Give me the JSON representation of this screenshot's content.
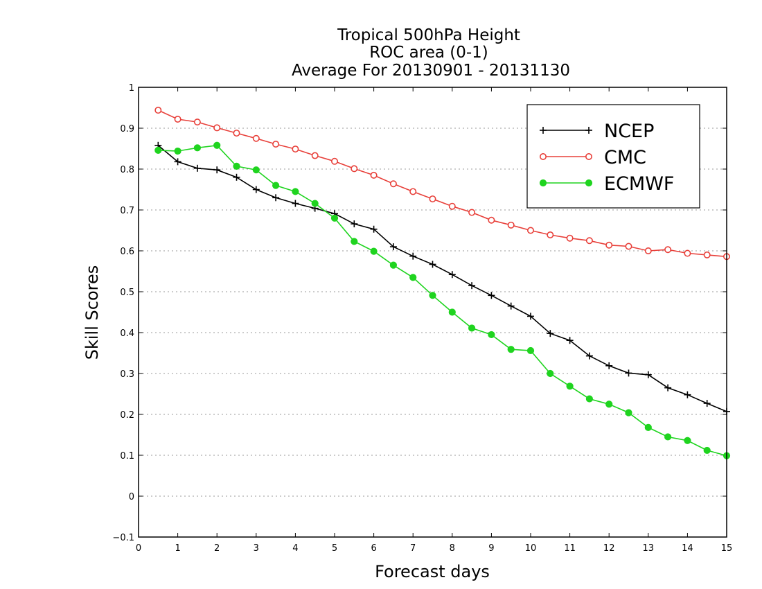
{
  "chart_data": {
    "type": "line",
    "title": [
      "Tropical 500hPa Height",
      "ROC area (0-1)",
      "Average For 20130901 - 20131130"
    ],
    "xlabel": "Forecast days",
    "ylabel": "Skill Scores",
    "xlim": [
      0,
      15
    ],
    "ylim": [
      -0.1,
      1
    ],
    "xticks": [
      0,
      1,
      2,
      3,
      4,
      5,
      6,
      7,
      8,
      9,
      10,
      11,
      12,
      13,
      14,
      15
    ],
    "xtick_labels": [
      "0",
      "1",
      "2",
      "3",
      "4",
      "5",
      "6",
      "7",
      "8",
      "9",
      "10",
      "11",
      "12",
      "13",
      "14",
      "15"
    ],
    "yticks": [
      -0.1,
      0,
      0.1,
      0.2,
      0.3,
      0.4,
      0.5,
      0.6,
      0.7,
      0.8,
      0.9,
      1
    ],
    "ytick_labels": [
      "−0.1",
      "0",
      "0.1",
      "0.2",
      "0.3",
      "0.4",
      "0.5",
      "0.6",
      "0.7",
      "0.8",
      "0.9",
      "1"
    ],
    "grid": "horizontal-dotted",
    "legend_position": "top-right",
    "x": [
      0.5,
      1,
      1.5,
      2,
      2.5,
      3,
      3.5,
      4,
      4.5,
      5,
      5.5,
      6,
      6.5,
      7,
      7.5,
      8,
      8.5,
      9,
      9.5,
      10,
      10.5,
      11,
      11.5,
      12,
      12.5,
      13,
      13.5,
      14,
      14.5,
      15
    ],
    "series": [
      {
        "name": "NCEP",
        "color": "#000000",
        "marker": "plus",
        "values": [
          0.858,
          0.818,
          0.802,
          0.798,
          0.78,
          0.75,
          0.73,
          0.716,
          0.704,
          0.691,
          0.666,
          0.653,
          0.61,
          0.587,
          0.567,
          0.542,
          0.515,
          0.491,
          0.465,
          0.44,
          0.398,
          0.381,
          0.343,
          0.319,
          0.301,
          0.297,
          0.265,
          0.248,
          0.227,
          0.207
        ]
      },
      {
        "name": "CMC",
        "color": "#e8403a",
        "marker": "open-circle",
        "values": [
          0.944,
          0.922,
          0.915,
          0.901,
          0.888,
          0.875,
          0.861,
          0.849,
          0.833,
          0.819,
          0.801,
          0.785,
          0.764,
          0.745,
          0.727,
          0.709,
          0.694,
          0.675,
          0.663,
          0.65,
          0.639,
          0.631,
          0.625,
          0.614,
          0.611,
          0.6,
          0.603,
          0.594,
          0.59,
          0.586
        ]
      },
      {
        "name": "ECMWF",
        "color": "#1fd41f",
        "marker": "filled-circle",
        "values": [
          0.846,
          0.844,
          0.852,
          0.858,
          0.807,
          0.798,
          0.76,
          0.745,
          0.716,
          0.68,
          0.623,
          0.599,
          0.565,
          0.535,
          0.491,
          0.45,
          0.411,
          0.395,
          0.359,
          0.356,
          0.3,
          0.269,
          0.238,
          0.225,
          0.204,
          0.168,
          0.145,
          0.136,
          0.112,
          0.099
        ]
      }
    ]
  }
}
